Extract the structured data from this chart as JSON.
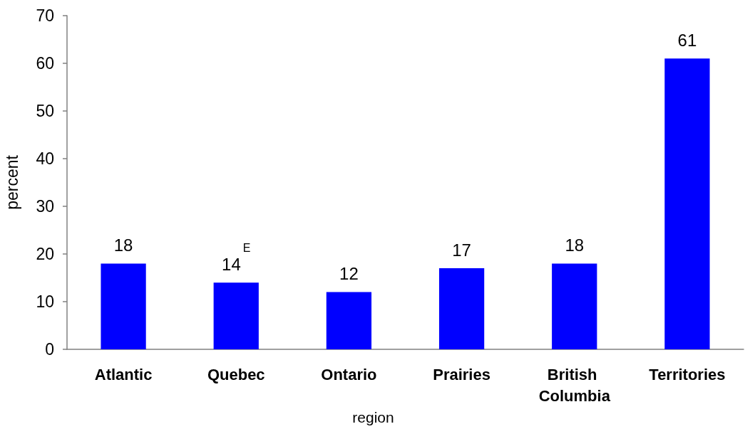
{
  "chart_data": {
    "type": "bar",
    "xlabel": "region",
    "ylabel": "percent",
    "categories": [
      "Atlantic",
      "Quebec",
      "Ontario",
      "Prairies",
      "British Columbia",
      "Territories"
    ],
    "values": [
      18,
      14,
      12,
      17,
      18,
      61
    ],
    "color": "#0000ff",
    "value_labels": [
      "18",
      "14$^{E}$",
      "12",
      "17",
      "18",
      "61"
    ],
    "ylim": [
      0,
      70
    ],
    "yticks": [
      0,
      10,
      20,
      30,
      40,
      50,
      60,
      70
    ]
  }
}
